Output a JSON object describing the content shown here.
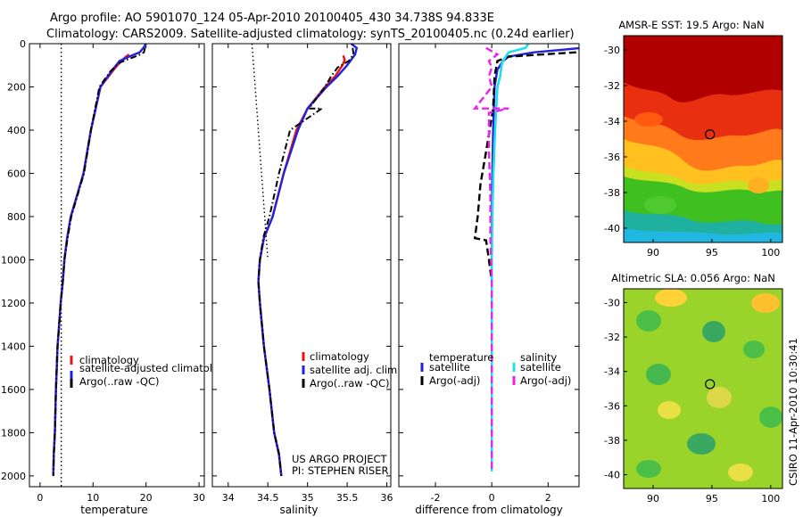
{
  "header": {
    "line1": "Argo profile: AO 5901070_124 05-Apr-2010 20100405_430 34.738S 94.833E",
    "line2": "Climatology: CARS2009. Satellite-adjusted climatology: synTS_20100405.nc (0.24d earlier)"
  },
  "colors": {
    "red": "#ee1111",
    "blue": "#2222dd",
    "black": "#000000",
    "cyan": "#22ddee",
    "magenta": "#ee22ee"
  },
  "notes": {
    "project": "US ARGO PROJECT",
    "pi": "PI: STEPHEN RISER",
    "credit": "CSIRO 11-Apr-2010 10:30:41"
  },
  "chart_data": [
    {
      "id": "temperature",
      "type": "line",
      "xlabel": "temperature",
      "ylabel": "",
      "xlim": [
        -2,
        31
      ],
      "ylim": [
        2050,
        0
      ],
      "xticks": [
        0,
        10,
        20,
        30
      ],
      "yticks": [
        0,
        200,
        400,
        600,
        800,
        1000,
        1200,
        1400,
        1600,
        1800,
        2000
      ],
      "ref_line": {
        "x": 4,
        "style": "dotted"
      },
      "legend": [
        "climatology",
        "satellite-adjusted climatolog",
        "Argo(..raw -QC)"
      ],
      "series": [
        {
          "name": "climatology",
          "color": "red",
          "style": "solid",
          "x": [
            16.8,
            16.2,
            15.4,
            14.6,
            13.6,
            11.4,
            9.6,
            8.2,
            7.0,
            5.8,
            5.1,
            4.6,
            4.3,
            3.9,
            3.6,
            3.3,
            3.0,
            2.8,
            2.6,
            2.5
          ],
          "y": [
            50,
            60,
            80,
            100,
            130,
            200,
            400,
            600,
            700,
            800,
            900,
            1000,
            1100,
            1200,
            1300,
            1400,
            1600,
            1800,
            1900,
            2000
          ]
        },
        {
          "name": "satellite-adjusted climatology",
          "color": "blue",
          "style": "solid",
          "x": [
            20.0,
            19.5,
            18.8,
            16.8,
            15.0,
            13.4,
            11.4,
            9.6,
            8.2,
            7.0,
            5.8,
            5.1,
            4.6,
            4.3,
            3.9,
            3.6,
            3.3,
            3.0,
            2.8,
            2.6,
            2.5
          ],
          "y": [
            0,
            20,
            40,
            60,
            80,
            130,
            200,
            400,
            600,
            700,
            800,
            900,
            1000,
            1100,
            1200,
            1300,
            1400,
            1600,
            1800,
            1900,
            2000
          ]
        },
        {
          "name": "Argo(..raw -QC)",
          "color": "black",
          "style": "dashdot",
          "x": [
            19.8,
            19.6,
            18.5,
            16.8,
            14.8,
            13.2,
            11.2,
            9.6,
            8.3,
            7.1,
            5.9,
            5.2,
            4.6,
            4.3,
            3.9,
            3.6,
            3.3,
            3.0,
            2.8,
            2.6,
            2.5
          ],
          "y": [
            20,
            40,
            55,
            70,
            90,
            130,
            200,
            400,
            600,
            700,
            800,
            900,
            1000,
            1100,
            1200,
            1300,
            1400,
            1600,
            1800,
            1900,
            2000
          ]
        }
      ]
    },
    {
      "id": "salinity",
      "type": "line",
      "xlabel": "salinity",
      "ylabel": "",
      "xlim": [
        33.8,
        36.05
      ],
      "ylim": [
        2050,
        0
      ],
      "xticks": [
        34,
        34.5,
        35,
        35.5,
        36
      ],
      "yticks": [],
      "ref_line": {
        "x1": 34.3,
        "y1": 0,
        "x2": 34.5,
        "y2": 1000,
        "style": "dotted"
      },
      "legend": [
        "climatology",
        "satellite adj. clim.",
        "Argo(..raw -QC)"
      ],
      "series": [
        {
          "name": "climatology",
          "color": "red",
          "style": "solid",
          "x": [
            35.45,
            35.47,
            35.44,
            35.35,
            35.22,
            35.0,
            34.86,
            34.7,
            34.56,
            34.45,
            34.4,
            34.38,
            34.4,
            34.45,
            34.52,
            34.58,
            34.64,
            34.67
          ],
          "y": [
            55,
            75,
            100,
            150,
            200,
            300,
            400,
            600,
            800,
            900,
            1000,
            1100,
            1200,
            1400,
            1600,
            1800,
            1900,
            2000
          ]
        },
        {
          "name": "satellite adj. clim.",
          "color": "blue",
          "style": "solid",
          "x": [
            35.55,
            35.62,
            35.6,
            35.5,
            35.38,
            35.24,
            35.0,
            34.88,
            34.7,
            34.56,
            34.45,
            34.4,
            34.38,
            34.4,
            34.45,
            34.52,
            34.58,
            34.64,
            34.67
          ],
          "y": [
            0,
            20,
            50,
            100,
            150,
            200,
            300,
            400,
            600,
            800,
            900,
            1000,
            1100,
            1200,
            1400,
            1600,
            1800,
            1900,
            2000
          ]
        },
        {
          "name": "Argo(..raw -QC)",
          "color": "black",
          "style": "dashdot",
          "x": [
            35.57,
            35.58,
            35.52,
            35.38,
            35.3,
            35.22,
            35.02,
            35.18,
            34.78,
            34.64,
            34.52,
            34.44,
            34.4,
            34.38,
            34.4,
            34.45,
            34.52,
            34.58,
            34.64,
            34.67
          ],
          "y": [
            20,
            50,
            80,
            110,
            150,
            200,
            300,
            300,
            400,
            600,
            800,
            900,
            1000,
            1100,
            1200,
            1400,
            1600,
            1800,
            1900,
            2000
          ]
        }
      ]
    },
    {
      "id": "difference",
      "type": "line",
      "xlabel": "difference from climatology",
      "ylabel": "",
      "xlim": [
        -3.3,
        3.1
      ],
      "ylim": [
        2050,
        0
      ],
      "xticks": [
        -2,
        0,
        2
      ],
      "yticks": [],
      "legend_groups": [
        {
          "title": "temperature",
          "entries": [
            "satellite",
            "Argo(-adj)"
          ]
        },
        {
          "title": "salinity",
          "entries": [
            "satellite",
            "Argo(-adj)"
          ]
        }
      ],
      "series": [
        {
          "name": "temperature satellite",
          "color": "blue",
          "style": "solid",
          "x": [
            3.2,
            1.5,
            0.6,
            0.4,
            0.2,
            0.1,
            0.05,
            0.02,
            0.0,
            0.0,
            0.0,
            0.0
          ],
          "y": [
            20,
            40,
            60,
            80,
            120,
            200,
            400,
            600,
            800,
            1000,
            1100,
            1200
          ]
        },
        {
          "name": "temperature Argo(-adj)",
          "color": "black",
          "style": "dashed",
          "x": [
            3.0,
            1.8,
            0.6,
            0.2,
            0.1,
            0.05,
            -0.2,
            -0.4,
            -0.5,
            -0.6,
            -0.2,
            -0.1,
            0.0
          ],
          "y": [
            40,
            50,
            60,
            80,
            150,
            300,
            500,
            650,
            800,
            900,
            910,
            1000,
            1100
          ]
        },
        {
          "name": "salinity satellite",
          "color": "cyan",
          "style": "solid",
          "x": [
            1.3,
            1.2,
            0.6,
            0.5,
            0.4,
            0.35,
            0.3,
            0.2,
            0.12,
            0.06,
            0.02,
            0.0,
            0.0,
            0.0,
            0.0,
            0.0
          ],
          "y": [
            0,
            20,
            40,
            60,
            80,
            100,
            150,
            200,
            400,
            600,
            800,
            1000,
            1400,
            1600,
            1800,
            1980
          ]
        },
        {
          "name": "salinity Argo(-adj)",
          "color": "magenta",
          "style": "dashed",
          "x": [
            -0.2,
            0.2,
            -0.1,
            0.0,
            -0.1,
            0.0,
            -0.6,
            0.6,
            -0.1,
            -0.1,
            -0.05,
            -0.05,
            0.0,
            0.0,
            0.0,
            0.0
          ],
          "y": [
            20,
            50,
            80,
            110,
            150,
            200,
            300,
            300,
            320,
            500,
            700,
            900,
            1100,
            1400,
            1600,
            1980
          ]
        }
      ]
    },
    {
      "id": "sst-map",
      "type": "heatmap",
      "title": "AMSR-E SST: 19.5 Argo: NaN",
      "xticks": [
        90,
        95,
        100
      ],
      "yticks": [
        -30,
        -32,
        -34,
        -36,
        -38,
        -40
      ],
      "xlim": [
        87.5,
        101.0
      ],
      "ylim": [
        -40.8,
        -29.2
      ],
      "profile_marker": {
        "lon": 94.833,
        "lat": -34.738
      }
    },
    {
      "id": "sla-map",
      "type": "heatmap",
      "title": "Altimetric SLA: 0.056 Argo: NaN",
      "xticks": [
        90,
        95,
        100
      ],
      "yticks": [
        -30,
        -32,
        -34,
        -36,
        -38,
        -40
      ],
      "xlim": [
        87.5,
        101.0
      ],
      "ylim": [
        -40.8,
        -29.2
      ],
      "profile_marker": {
        "lon": 94.833,
        "lat": -34.738
      }
    }
  ]
}
